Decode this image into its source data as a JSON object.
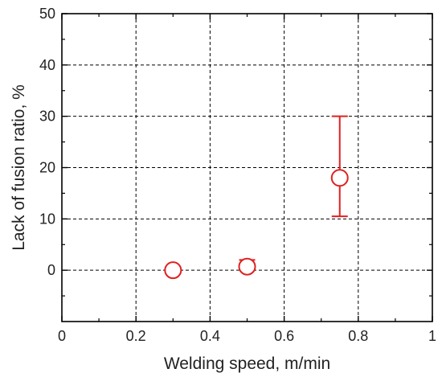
{
  "chart_data": {
    "type": "scatter",
    "xlabel": "Welding speed, m/min",
    "ylabel": "Lack of fusion ratio, %",
    "xlim": [
      0,
      1
    ],
    "ylim": [
      -10,
      50
    ],
    "x_ticks": [
      0,
      0.2,
      0.4,
      0.6,
      0.8,
      1
    ],
    "x_tick_labels": [
      "0",
      "0.2",
      "0.4",
      "0.6",
      "0.8",
      "1"
    ],
    "y_ticks": [
      0,
      10,
      20,
      30,
      40,
      50
    ],
    "y_tick_labels": [
      "0",
      "10",
      "20",
      "30",
      "40",
      "50"
    ],
    "grid": true,
    "marker": "open-circle",
    "color": "#e02020",
    "points": [
      {
        "x": 0.3,
        "y": 0,
        "err_low": 0,
        "err_high": 0
      },
      {
        "x": 0.5,
        "y": 0.7,
        "err_low": 0.7,
        "err_high": 2.0
      },
      {
        "x": 0.75,
        "y": 18,
        "err_low": 10.5,
        "err_high": 30
      }
    ]
  }
}
